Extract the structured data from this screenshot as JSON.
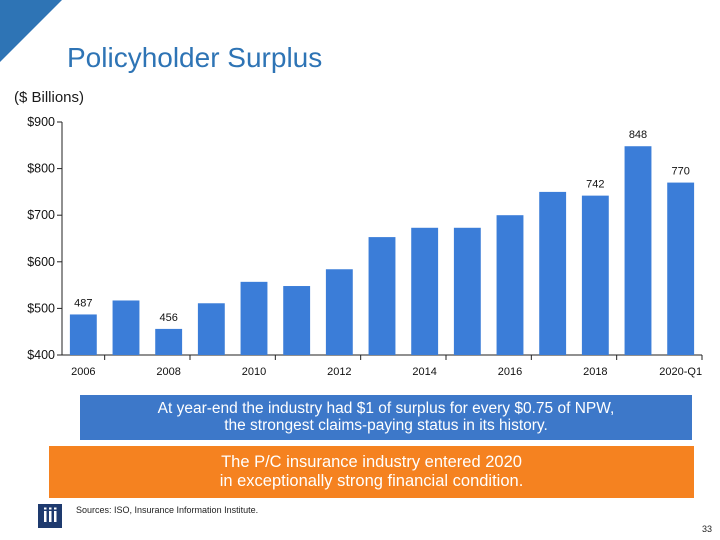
{
  "slide": {
    "title": "Policyholder Surplus",
    "subtitle": "($ Billions)",
    "callout_blue": {
      "line1": "At year-end the industry had $1 of surplus for every $0.75 of NPW,",
      "line2": "the strongest claims-paying status in its history."
    },
    "callout_orange": {
      "line1": "The P/C insurance industry entered 2020",
      "line2": "in exceptionally strong financial condition."
    },
    "sources": "Sources: ISO, Insurance Information Institute.",
    "page_number": "33"
  },
  "colors": {
    "title": "#2e74b5",
    "bar": "#3b7dd8",
    "callout_blue": "#3d78c9",
    "callout_orange": "#f58220",
    "logo": "#1e3a6e"
  },
  "chart_data": {
    "type": "bar",
    "title": "Policyholder Surplus",
    "ylabel": "($ Billions)",
    "xlabel": "",
    "ylim": [
      400,
      900
    ],
    "yticks": [
      400,
      500,
      600,
      700,
      800,
      900
    ],
    "ytick_labels": [
      "$400",
      "$500",
      "$600",
      "$700",
      "$800",
      "$900"
    ],
    "categories": [
      "2006",
      "2007",
      "2008",
      "2009",
      "2010",
      "2011",
      "2012",
      "2013",
      "2014",
      "2015",
      "2016",
      "2017",
      "2018",
      "2019",
      "2020-Q1"
    ],
    "xtick_labels": [
      "2006",
      "",
      "2008",
      "",
      "2010",
      "",
      "2012",
      "",
      "2014",
      "",
      "2016",
      "",
      "2018",
      "",
      "2020-Q1"
    ],
    "values": [
      487,
      517,
      456,
      511,
      557,
      548,
      584,
      653,
      673,
      673,
      700,
      750,
      742,
      848,
      770
    ],
    "data_labels": [
      "487",
      "",
      "456",
      "",
      "",
      "",
      "",
      "",
      "",
      "",
      "",
      "",
      "742",
      "848",
      "770"
    ],
    "grid": false,
    "legend": "none"
  }
}
